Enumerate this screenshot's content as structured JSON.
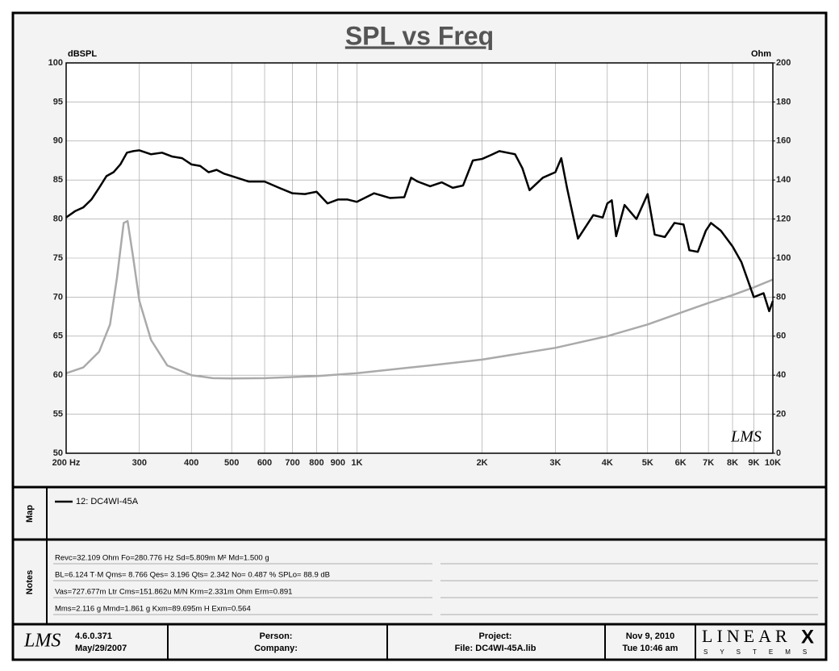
{
  "chart_data": {
    "type": "line",
    "title": "SPL vs Freq",
    "y_label": "dBSPL",
    "y2_label": "Ohm",
    "watermark": "LMS",
    "log_x": true,
    "grid": true,
    "xlim": [
      200,
      10000
    ],
    "xticks": [
      {
        "value": 200,
        "label": "200 Hz"
      },
      300,
      400,
      500,
      600,
      700,
      800,
      900,
      {
        "value": 1000,
        "label": "1K"
      },
      {
        "value": 2000,
        "label": "2K"
      },
      {
        "value": 3000,
        "label": "3K"
      },
      {
        "value": 4000,
        "label": "4K"
      },
      {
        "value": 5000,
        "label": "5K"
      },
      {
        "value": 6000,
        "label": "6K"
      },
      {
        "value": 7000,
        "label": "7K"
      },
      {
        "value": 8000,
        "label": "8K"
      },
      {
        "value": 9000,
        "label": "9K"
      },
      {
        "value": 10000,
        "label": "10K"
      }
    ],
    "ylim": [
      50,
      100
    ],
    "yticks": [
      50,
      55,
      60,
      65,
      70,
      75,
      80,
      85,
      90,
      95,
      100
    ],
    "y2lim": [
      0,
      200
    ],
    "y2ticks": [
      0,
      20,
      40,
      60,
      80,
      100,
      120,
      140,
      160,
      180,
      200
    ],
    "series": [
      {
        "name": "12: DC4WI-45A",
        "color": "#000000",
        "x": [
          200,
          210,
          220,
          230,
          240,
          250,
          260,
          270,
          280,
          290,
          300,
          320,
          340,
          360,
          380,
          400,
          420,
          440,
          460,
          480,
          500,
          550,
          600,
          650,
          700,
          750,
          800,
          850,
          900,
          950,
          1000,
          1100,
          1200,
          1300,
          1350,
          1400,
          1500,
          1600,
          1700,
          1800,
          1900,
          2000,
          2100,
          2200,
          2400,
          2500,
          2600,
          2800,
          3000,
          3100,
          3200,
          3400,
          3700,
          3900,
          4000,
          4100,
          4200,
          4400,
          4700,
          5000,
          5200,
          5500,
          5800,
          6100,
          6300,
          6600,
          6900,
          7100,
          7500,
          8000,
          8400,
          9000,
          9500,
          9800,
          10000
        ],
        "values": [
          80.2,
          81,
          81.5,
          82.5,
          84,
          85.5,
          86,
          87,
          88.5,
          88.7,
          88.8,
          88.3,
          88.5,
          88,
          87.8,
          87,
          86.8,
          86,
          86.3,
          85.8,
          85.5,
          84.8,
          84.8,
          84,
          83.3,
          83.2,
          83.5,
          82,
          82.5,
          82.5,
          82.2,
          83.3,
          82.7,
          82.8,
          85.3,
          84.8,
          84.2,
          84.7,
          84,
          84.3,
          87.5,
          87.7,
          88.2,
          88.7,
          88.3,
          86.5,
          83.7,
          85.3,
          86,
          87.8,
          84,
          77.5,
          80.5,
          80.2,
          82,
          82.4,
          77.8,
          81.8,
          80,
          83.2,
          78,
          77.7,
          79.5,
          79.3,
          76,
          75.8,
          78.5,
          79.5,
          78.5,
          76.5,
          74.5,
          70,
          70.5,
          68.2,
          69.5
        ]
      },
      {
        "color": "#aaaaaa",
        "axis": "y2",
        "x": [
          200,
          220,
          240,
          255,
          265,
          275,
          281,
          290,
          300,
          320,
          350,
          400,
          450,
          500,
          600,
          800,
          1000,
          1500,
          2000,
          3000,
          4000,
          5000,
          6000,
          7000,
          8000,
          9000,
          10000
        ],
        "values": [
          41,
          44,
          52,
          66,
          90,
          118,
          119,
          100,
          78,
          58,
          45,
          40,
          38.5,
          38.3,
          38.5,
          39.5,
          41,
          45,
          48,
          54,
          60,
          66,
          72,
          77,
          81,
          85,
          89
        ]
      }
    ]
  },
  "map": {
    "label": "Map"
  },
  "notes": {
    "label": "Notes",
    "lines": [
      "Revc=32.109 Ohm  Fo=280.776 Hz  Sd=5.809m M² Md=1.500 g",
      "BL=6.124 T·M  Qms= 8.766  Qes= 3.196  Qts= 2.342  No= 0.487 %  SPLo= 88.9 dB",
      "Vas=727.677m Ltr  Cms=151.862u M/N  Krm=2.331m Ohm  Erm=0.891",
      "Mms=2.116 g  Mmd=1.861 g  Kxm=89.695m H  Exm=0.564"
    ]
  },
  "footer": {
    "logo": "LMS",
    "version": "4.6.0.371",
    "build_date": "May/29/2007",
    "person": "Person:",
    "company": "Company:",
    "project": "Project:",
    "file": "File: DC4WI-45A.lib",
    "date": "Nov 9, 2010",
    "time": "Tue 10:46 am",
    "brand": "LINEAR",
    "brand_mark": "X",
    "brand_sub": "SYSTEMS"
  }
}
